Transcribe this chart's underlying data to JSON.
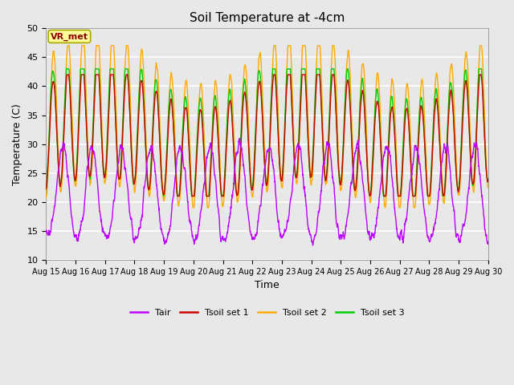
{
  "title": "Soil Temperature at -4cm",
  "xlabel": "Time",
  "ylabel": "Temperature (C)",
  "ylim": [
    10,
    50
  ],
  "xlim": [
    0,
    15
  ],
  "fig_bg_color": "#e8e8e8",
  "plot_bg_color": "#e8e8e8",
  "grid_color": "white",
  "annotation_text": "VR_met",
  "annotation_box_color": "#ffff99",
  "annotation_text_color": "#880000",
  "annotation_edge_color": "#aaaa00",
  "line_colors": {
    "Tair": "#bb00ff",
    "Tsoil set 1": "#cc0000",
    "Tsoil set 2": "#ffaa00",
    "Tsoil set 3": "#00cc00"
  },
  "xtick_labels": [
    "Aug 15",
    "Aug 16",
    "Aug 17",
    "Aug 18",
    "Aug 19",
    "Aug 20",
    "Aug 21",
    "Aug 22",
    "Aug 23",
    "Aug 24",
    "Aug 25",
    "Aug 26",
    "Aug 27",
    "Aug 28",
    "Aug 29",
    "Aug 30"
  ],
  "ytick_labels": [
    "10",
    "15",
    "20",
    "25",
    "30",
    "35",
    "40",
    "45",
    "50"
  ],
  "num_days": 15,
  "points_per_day": 144
}
